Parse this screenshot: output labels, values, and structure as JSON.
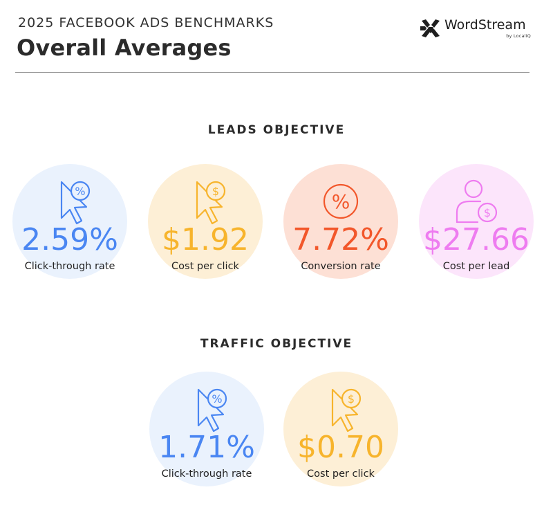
{
  "header": {
    "kicker": "2025 FACEBOOK ADS BENCHMARKS",
    "title": "Overall Averages"
  },
  "logo": {
    "name": "WordStream",
    "sub": "by LocaliQ"
  },
  "colors": {
    "blue": "#4a86f2",
    "blue_bg": "#eaf2fd",
    "orange": "#f7b42c",
    "orange_bg": "#fdefd6",
    "red": "#f2572b",
    "red_bg": "#fde0d5",
    "pink": "#ee7cf0",
    "pink_bg": "#fce5fb"
  },
  "chart_data": [
    {
      "type": "table",
      "title": "LEADS OBJECTIVE",
      "metrics": [
        {
          "label": "Click-through rate",
          "value": 2.59,
          "display": "2.59%",
          "icon": "cursor-percent-icon",
          "color": "blue"
        },
        {
          "label": "Cost per click",
          "value": 1.92,
          "display": "$1.92",
          "icon": "cursor-dollar-icon",
          "color": "orange"
        },
        {
          "label": "Conversion rate",
          "value": 7.72,
          "display": "7.72%",
          "icon": "percent-circle-icon",
          "color": "red"
        },
        {
          "label": "Cost per lead",
          "value": 27.66,
          "display": "$27.66",
          "icon": "person-dollar-icon",
          "color": "pink"
        }
      ]
    },
    {
      "type": "table",
      "title": "TRAFFIC OBJECTIVE",
      "metrics": [
        {
          "label": "Click-through rate",
          "value": 1.71,
          "display": "1.71%",
          "icon": "cursor-percent-icon",
          "color": "blue"
        },
        {
          "label": "Cost per click",
          "value": 0.7,
          "display": "$0.70",
          "icon": "cursor-dollar-icon",
          "color": "orange"
        }
      ]
    }
  ]
}
